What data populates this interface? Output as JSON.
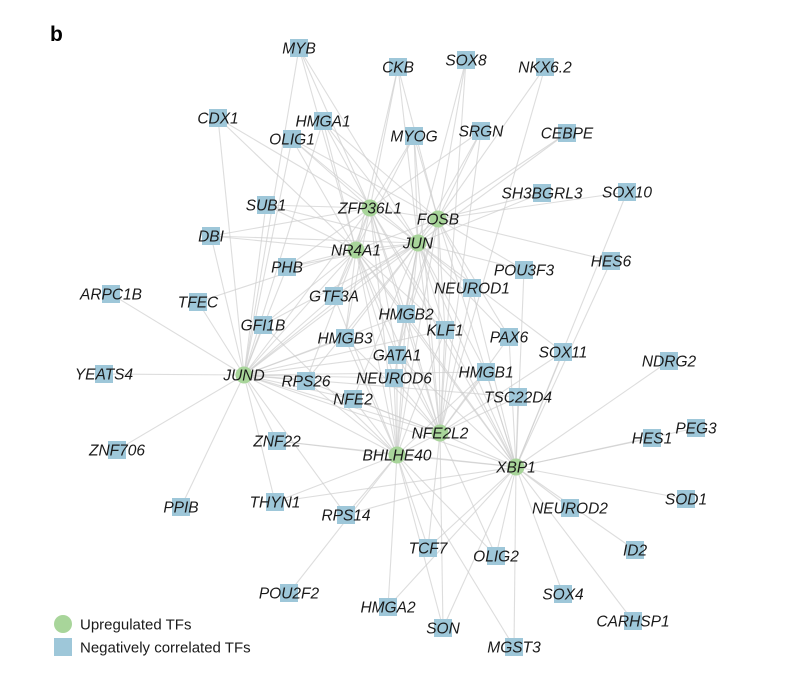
{
  "panel_label": "b",
  "colors": {
    "upregulated": "#a8d59a",
    "negative": "#9ec7d9",
    "edge": "#cfcfcf"
  },
  "legend": [
    {
      "key": "up",
      "label": "Upregulated TFs",
      "shape": "circle"
    },
    {
      "key": "neg",
      "label": "Negatively correlated TFs",
      "shape": "square"
    }
  ],
  "nodes": [
    {
      "id": "ZFP36L1",
      "type": "up"
    },
    {
      "id": "FOSB",
      "type": "up"
    },
    {
      "id": "JUN",
      "type": "up"
    },
    {
      "id": "NR4A1",
      "type": "up"
    },
    {
      "id": "JUND",
      "type": "up"
    },
    {
      "id": "BHLHE40",
      "type": "up"
    },
    {
      "id": "XBP1",
      "type": "up"
    },
    {
      "id": "NFE2L2",
      "type": "up"
    },
    {
      "id": "MYB",
      "type": "neg"
    },
    {
      "id": "CKB",
      "type": "neg"
    },
    {
      "id": "SOX8",
      "type": "neg"
    },
    {
      "id": "NKX6.2",
      "type": "neg"
    },
    {
      "id": "CDX1",
      "type": "neg"
    },
    {
      "id": "HMGA1",
      "type": "neg"
    },
    {
      "id": "OLIG1",
      "type": "neg"
    },
    {
      "id": "MYOG",
      "type": "neg"
    },
    {
      "id": "SRGN",
      "type": "neg"
    },
    {
      "id": "CEBPE",
      "type": "neg"
    },
    {
      "id": "SH3BGRL3",
      "type": "neg"
    },
    {
      "id": "SOX10",
      "type": "neg"
    },
    {
      "id": "SUB1",
      "type": "neg"
    },
    {
      "id": "DBI",
      "type": "neg"
    },
    {
      "id": "HES6",
      "type": "neg"
    },
    {
      "id": "POU3F3",
      "type": "neg"
    },
    {
      "id": "PHB",
      "type": "neg"
    },
    {
      "id": "NEUROD1",
      "type": "neg"
    },
    {
      "id": "ARPC1B",
      "type": "neg"
    },
    {
      "id": "TFEC",
      "type": "neg"
    },
    {
      "id": "GTF3A",
      "type": "neg"
    },
    {
      "id": "HMGB2",
      "type": "neg"
    },
    {
      "id": "GFI1B",
      "type": "neg"
    },
    {
      "id": "HMGB3",
      "type": "neg"
    },
    {
      "id": "KLF1",
      "type": "neg"
    },
    {
      "id": "PAX6",
      "type": "neg"
    },
    {
      "id": "GATA1",
      "type": "neg"
    },
    {
      "id": "SOX11",
      "type": "neg"
    },
    {
      "id": "NDRG2",
      "type": "neg"
    },
    {
      "id": "YEATS4",
      "type": "neg"
    },
    {
      "id": "RPS26",
      "type": "neg"
    },
    {
      "id": "NEUROD6",
      "type": "neg"
    },
    {
      "id": "HMGB1",
      "type": "neg"
    },
    {
      "id": "NFE2",
      "type": "neg"
    },
    {
      "id": "TSC22D4",
      "type": "neg"
    },
    {
      "id": "PEG3",
      "type": "neg"
    },
    {
      "id": "ZNF706",
      "type": "neg"
    },
    {
      "id": "ZNF22",
      "type": "neg"
    },
    {
      "id": "HES1",
      "type": "neg"
    },
    {
      "id": "PPIB",
      "type": "neg"
    },
    {
      "id": "THYN1",
      "type": "neg"
    },
    {
      "id": "RPS14",
      "type": "neg"
    },
    {
      "id": "NEUROD2",
      "type": "neg"
    },
    {
      "id": "SOD1",
      "type": "neg"
    },
    {
      "id": "TCF7",
      "type": "neg"
    },
    {
      "id": "OLIG2",
      "type": "neg"
    },
    {
      "id": "ID2",
      "type": "neg"
    },
    {
      "id": "POU2F2",
      "type": "neg"
    },
    {
      "id": "HMGA2",
      "type": "neg"
    },
    {
      "id": "SOX4",
      "type": "neg"
    },
    {
      "id": "CARHSP1",
      "type": "neg"
    },
    {
      "id": "SON",
      "type": "neg"
    },
    {
      "id": "MGST3",
      "type": "neg"
    }
  ]
}
